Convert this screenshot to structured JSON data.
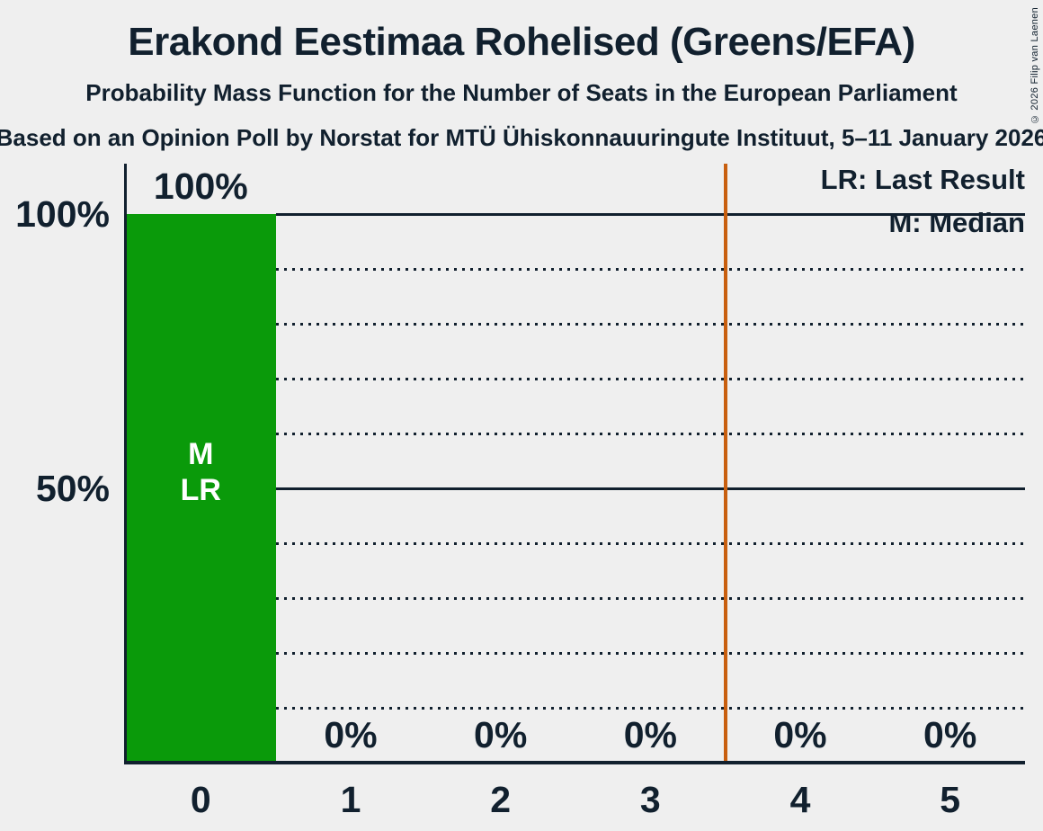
{
  "header": {
    "title": "Erakond Eestimaa Rohelised (Greens/EFA)",
    "subtitle": "Probability Mass Function for the Number of Seats in the European Parliament",
    "source": "Based on an Opinion Poll by Norstat for MTÜ Ühiskonnauuringute Instituut, 5–11 January 2026",
    "copyright": "© 2026 Filip van Laenen"
  },
  "legend": {
    "last_result": "LR: Last Result",
    "median": "M: Median"
  },
  "chart_data": {
    "type": "bar",
    "title": "Erakond Eestimaa Rohelised (Greens/EFA)",
    "subtitle": "Probability Mass Function for the Number of Seats in the European Parliament",
    "source": "Based on an Opinion Poll by Norstat for MTÜ Ühiskonnauuringute Instituut, 5–11 January 2026",
    "categories": [
      "0",
      "1",
      "2",
      "3",
      "4",
      "5"
    ],
    "values": [
      100,
      0,
      0,
      0,
      0,
      0
    ],
    "bar_value_labels": [
      "100%",
      "0%",
      "0%",
      "0%",
      "0%",
      "0%"
    ],
    "xlabel": "Number of Seats",
    "ylabel": "Probability",
    "ylim": [
      0,
      100
    ],
    "y_axis_ticks": [
      {
        "label": "100%",
        "value": 100
      },
      {
        "label": "50%",
        "value": 50
      }
    ],
    "gridlines_pct": [
      10,
      20,
      30,
      40,
      50,
      60,
      70,
      80,
      90,
      100
    ],
    "solid_gridlines_pct": [
      50,
      100
    ],
    "legend_entries": [
      "LR: Last Result",
      "M: Median"
    ],
    "bar_annotations": {
      "category": "0",
      "lines": [
        "M",
        "LR"
      ]
    },
    "median_seats": "0",
    "last_result_seats": "0",
    "majority_threshold_seats": 3.5,
    "grid": "dotted-horizontal",
    "legend_position": "top-right",
    "colors": {
      "bar": "#0A9A0A",
      "majority_line": "#C85F0F",
      "text": "#11202E",
      "annotation_text": "#FFFFFF",
      "background": "#EFEFEF"
    }
  }
}
